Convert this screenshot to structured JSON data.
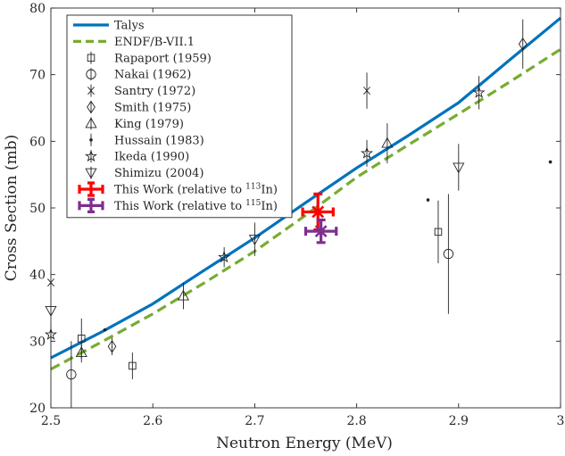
{
  "chart_data": {
    "type": "line",
    "xlabel": "Neutron Energy (MeV)",
    "ylabel": "Cross Section (mb)",
    "xlim": [
      2.5,
      3.0
    ],
    "ylim": [
      20,
      80
    ],
    "xticks": [
      "2.5",
      "2.6",
      "2.7",
      "2.8",
      "2.9",
      "3"
    ],
    "yticks": [
      "20",
      "30",
      "40",
      "50",
      "60",
      "70",
      "80"
    ],
    "grid": false,
    "legend_position": "top-left",
    "series": [
      {
        "name": "Talys",
        "style": "line",
        "color": "#0072bd",
        "x": [
          2.5,
          2.55,
          2.6,
          2.65,
          2.7,
          2.75,
          2.8,
          2.85,
          2.9,
          2.95,
          3.0
        ],
        "y": [
          27.5,
          31.4,
          35.6,
          40.6,
          45.5,
          50.8,
          56.0,
          60.8,
          65.8,
          72.2,
          78.5
        ]
      },
      {
        "name": "ENDF/B-VII.1",
        "style": "dashed",
        "color": "#77ac30",
        "x": [
          2.5,
          2.55,
          2.6,
          2.65,
          2.7,
          2.75,
          2.8,
          2.85,
          2.9,
          2.95,
          3.0
        ],
        "y": [
          25.8,
          29.9,
          34.1,
          38.7,
          43.5,
          48.9,
          54.6,
          59.4,
          64.1,
          68.9,
          73.8
        ]
      },
      {
        "name": "Rapaport (1959)",
        "marker": "square",
        "points": [
          {
            "x": 2.53,
            "y": 30.4,
            "yerr": 3.0
          },
          {
            "x": 2.58,
            "y": 26.3,
            "yerr": 2.0
          },
          {
            "x": 2.88,
            "y": 46.4,
            "yerr": 4.7
          }
        ]
      },
      {
        "name": "Nakai (1962)",
        "marker": "circle",
        "points": [
          {
            "x": 2.52,
            "y": 25.0,
            "yerr": 5.0
          },
          {
            "x": 2.89,
            "y": 43.1,
            "yerr": 9.0
          }
        ]
      },
      {
        "name": "Santry (1972)",
        "marker": "x",
        "points": [
          {
            "x": 2.5,
            "y": 38.8,
            "yerr": 0
          },
          {
            "x": 2.81,
            "y": 67.6,
            "yerr": 2.7
          }
        ]
      },
      {
        "name": "Smith (1975)",
        "marker": "diamond",
        "points": [
          {
            "x": 2.56,
            "y": 29.2,
            "yerr": 1.3
          },
          {
            "x": 2.963,
            "y": 74.6,
            "yerr": 3.7
          }
        ]
      },
      {
        "name": "King (1979)",
        "marker": "triangle-up",
        "points": [
          {
            "x": 2.53,
            "y": 28.3,
            "yerr": 1.5
          },
          {
            "x": 2.63,
            "y": 36.8,
            "yerr": 2.0
          },
          {
            "x": 2.83,
            "y": 59.7,
            "yerr": 3.0
          }
        ]
      },
      {
        "name": "Hussain (1983)",
        "marker": "dot",
        "points": [
          {
            "x": 2.553,
            "y": 31.7,
            "yerr": 0
          },
          {
            "x": 2.87,
            "y": 51.2,
            "yerr": 0
          },
          {
            "x": 2.99,
            "y": 56.9,
            "yerr": 0
          }
        ]
      },
      {
        "name": "Ikeda (1990)",
        "marker": "star",
        "points": [
          {
            "x": 2.5,
            "y": 31.0,
            "yerr": 1.2
          },
          {
            "x": 2.67,
            "y": 42.6,
            "yerr": 1.5
          },
          {
            "x": 2.81,
            "y": 58.2,
            "yerr": 2.0
          },
          {
            "x": 2.92,
            "y": 67.3,
            "yerr": 2.5
          }
        ]
      },
      {
        "name": "Shimizu (2004)",
        "marker": "triangle-down",
        "points": [
          {
            "x": 2.5,
            "y": 34.6,
            "yerr": 0
          },
          {
            "x": 2.7,
            "y": 45.3,
            "yerr": 2.5
          },
          {
            "x": 2.9,
            "y": 56.1,
            "yerr": 3.5
          }
        ]
      },
      {
        "name": "This Work (relative to 113In)",
        "marker": "errorcross",
        "color": "#ff0000",
        "points": [
          {
            "x": 2.762,
            "y": 49.4,
            "xerr": 0.015,
            "yerr": 2.7
          }
        ]
      },
      {
        "name": "This Work (relative to 115In)",
        "marker": "errorcross",
        "color": "#7e2f8e",
        "points": [
          {
            "x": 2.765,
            "y": 46.5,
            "xerr": 0.015,
            "yerr": 1.7
          }
        ]
      }
    ],
    "legend": {
      "entries": [
        {
          "text": "Talys"
        },
        {
          "text": "ENDF/B-VII.1"
        },
        {
          "text": "Rapaport (1959)"
        },
        {
          "text": "Nakai (1962)"
        },
        {
          "text": "Santry (1972)"
        },
        {
          "text": "Smith (1975)"
        },
        {
          "text": "King (1979)"
        },
        {
          "text": "Hussain (1983)"
        },
        {
          "text": "Ikeda (1990)"
        },
        {
          "text": "Shimizu (2004)"
        },
        {
          "text": "This Work (relative to ",
          "sup": "113",
          "after": "In)"
        },
        {
          "text": "This Work (relative to ",
          "sup": "115",
          "after": "In)"
        }
      ]
    }
  }
}
